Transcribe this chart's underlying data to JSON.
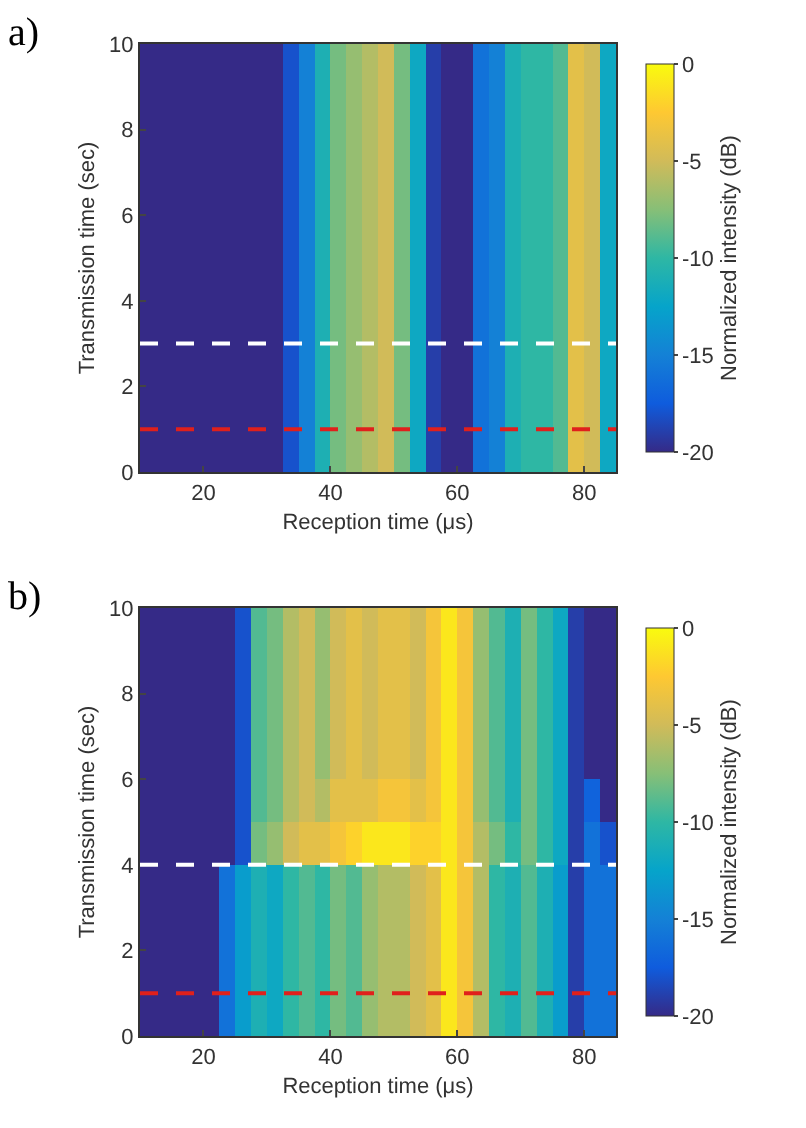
{
  "chart_data": [
    {
      "type": "heatmap",
      "title": "a)",
      "xlabel": "Reception time (μs)",
      "ylabel": "Transmission time (sec)",
      "clabel": "Normalized intensity (dB)",
      "x": [
        11.25,
        13.75,
        16.25,
        18.75,
        21.25,
        23.75,
        26.25,
        28.75,
        31.25,
        33.75,
        36.25,
        38.75,
        41.25,
        43.75,
        46.25,
        48.75,
        51.25,
        53.75,
        56.25,
        58.75,
        61.25,
        63.75,
        66.25,
        68.75,
        71.25,
        73.75,
        76.25,
        78.75,
        81.25,
        83.75
      ],
      "y": [
        7.5,
        2.5
      ],
      "cells": [
        [
          -20,
          -20,
          -20,
          -20,
          -20,
          -20,
          -20,
          -20,
          -20,
          -18,
          -15,
          -11,
          -8,
          -7,
          -6,
          -5,
          -8,
          -12,
          -19,
          -20,
          -20,
          -16,
          -15,
          -11,
          -10,
          -10,
          -9,
          -4,
          -5,
          -12
        ],
        [
          -20,
          -20,
          -20,
          -20,
          -20,
          -20,
          -20,
          -20,
          -20,
          -18,
          -15,
          -11,
          -8,
          -7,
          -6,
          -5,
          -8,
          -12,
          -19,
          -20,
          -20,
          -16,
          -15,
          -11,
          -10,
          -10,
          -9,
          -4,
          -5,
          -12
        ]
      ],
      "xlim": [
        10,
        85
      ],
      "xticks": [
        20,
        40,
        60,
        80
      ],
      "ylim": [
        0,
        10
      ],
      "yticks": [
        0,
        2,
        4,
        6,
        8,
        10
      ],
      "clim": [
        -20,
        0
      ],
      "cticks": [
        -20,
        -15,
        -10,
        -5,
        0
      ],
      "ref_lines": [
        {
          "axis": "y",
          "value": 3,
          "color": "#ffffff",
          "line_style": "dashed"
        },
        {
          "axis": "y",
          "value": 1,
          "color": "#e0201c",
          "line_style": "dashed"
        }
      ]
    },
    {
      "type": "heatmap",
      "title": "b)",
      "xlabel": "Reception time (μs)",
      "ylabel": "Transmission time (sec)",
      "clabel": "Normalized intensity (dB)",
      "x": [
        11.25,
        13.75,
        16.25,
        18.75,
        21.25,
        23.75,
        26.25,
        28.75,
        31.25,
        33.75,
        36.25,
        38.75,
        41.25,
        43.75,
        46.25,
        48.75,
        51.25,
        53.75,
        56.25,
        58.75,
        61.25,
        63.75,
        66.25,
        68.75,
        71.25,
        73.75,
        76.25,
        78.75,
        81.25,
        83.75
      ],
      "y": [
        9.5,
        8.5,
        7.5,
        6.5,
        5.5,
        4.5,
        3.5,
        2.5,
        1.5,
        0.5
      ],
      "cells": [
        [
          -20,
          -20,
          -20,
          -20,
          -20,
          -20,
          -18,
          -9,
          -8,
          -6,
          -5,
          -7,
          -5,
          -4,
          -5,
          -4,
          -4,
          -5,
          -3,
          -1,
          -3,
          -7,
          -9,
          -11,
          -8,
          -10,
          -12,
          -19,
          -20,
          -20
        ],
        [
          -20,
          -20,
          -20,
          -20,
          -20,
          -20,
          -18,
          -9,
          -8,
          -6,
          -5,
          -7,
          -5,
          -4,
          -5,
          -4,
          -4,
          -5,
          -3,
          -1,
          -3,
          -7,
          -9,
          -11,
          -8,
          -10,
          -12,
          -19,
          -20,
          -20
        ],
        [
          -20,
          -20,
          -20,
          -20,
          -20,
          -20,
          -18,
          -9,
          -8,
          -6,
          -5,
          -7,
          -5,
          -4,
          -5,
          -4,
          -4,
          -5,
          -3,
          -1,
          -3,
          -7,
          -9,
          -11,
          -8,
          -10,
          -12,
          -19,
          -20,
          -20
        ],
        [
          -20,
          -20,
          -20,
          -20,
          -20,
          -20,
          -18,
          -9,
          -8,
          -6,
          -5,
          -7,
          -5,
          -4,
          -5,
          -4,
          -4,
          -5,
          -3,
          -1,
          -3,
          -7,
          -9,
          -11,
          -8,
          -10,
          -12,
          -19,
          -20,
          -20
        ],
        [
          -20,
          -20,
          -20,
          -20,
          -20,
          -20,
          -18,
          -9,
          -8,
          -6,
          -5,
          -6,
          -4,
          -4,
          -4,
          -3,
          -3,
          -4,
          -3,
          -1,
          -3,
          -7,
          -9,
          -11,
          -8,
          -10,
          -12,
          -19,
          -17,
          -20
        ],
        [
          -20,
          -20,
          -20,
          -20,
          -20,
          -20,
          -18,
          -8,
          -7,
          -5,
          -4,
          -4,
          -3,
          -2,
          -1,
          -1,
          -1,
          -2,
          -2,
          -1,
          -3,
          -6,
          -8,
          -10,
          -8,
          -10,
          -12,
          -19,
          -16,
          -18
        ],
        [
          -20,
          -20,
          -20,
          -20,
          -20,
          -16,
          -13,
          -11,
          -12,
          -10,
          -9,
          -10,
          -8,
          -9,
          -7,
          -6,
          -6,
          -5,
          -4,
          -1,
          -3,
          -6,
          -10,
          -11,
          -9,
          -11,
          -13,
          -19,
          -16,
          -16
        ],
        [
          -20,
          -20,
          -20,
          -20,
          -20,
          -16,
          -13,
          -11,
          -12,
          -10,
          -9,
          -10,
          -8,
          -9,
          -7,
          -6,
          -6,
          -5,
          -4,
          -1,
          -3,
          -6,
          -10,
          -11,
          -9,
          -11,
          -13,
          -19,
          -16,
          -16
        ],
        [
          -20,
          -20,
          -20,
          -20,
          -20,
          -16,
          -13,
          -11,
          -12,
          -10,
          -9,
          -10,
          -8,
          -9,
          -7,
          -6,
          -6,
          -5,
          -4,
          -1,
          -3,
          -6,
          -10,
          -11,
          -9,
          -11,
          -13,
          -19,
          -16,
          -16
        ],
        [
          -20,
          -20,
          -20,
          -20,
          -20,
          -16,
          -13,
          -11,
          -12,
          -10,
          -9,
          -10,
          -8,
          -9,
          -7,
          -6,
          -6,
          -5,
          -4,
          -1,
          -3,
          -6,
          -10,
          -11,
          -9,
          -11,
          -13,
          -19,
          -16,
          -16
        ]
      ],
      "xlim": [
        10,
        85
      ],
      "xticks": [
        20,
        40,
        60,
        80
      ],
      "ylim": [
        0,
        10
      ],
      "yticks": [
        0,
        2,
        4,
        6,
        8,
        10
      ],
      "clim": [
        -20,
        0
      ],
      "cticks": [
        -20,
        -15,
        -10,
        -5,
        0
      ],
      "ref_lines": [
        {
          "axis": "y",
          "value": 4,
          "color": "#ffffff",
          "line_style": "dashed"
        },
        {
          "axis": "y",
          "value": 1,
          "color": "#e0201c",
          "line_style": "dashed"
        }
      ]
    }
  ]
}
